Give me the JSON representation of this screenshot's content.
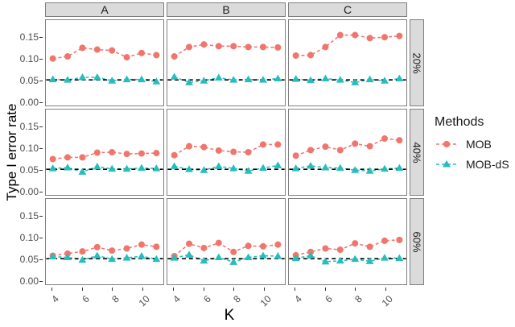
{
  "chart_data": {
    "type": "scatter",
    "subtype": "faceted-line-scatter-grid",
    "title": "",
    "xlabel": "K",
    "ylabel": "Type I error rate",
    "x": [
      4,
      5,
      6,
      7,
      8,
      9,
      10,
      11
    ],
    "x_ticks": [
      4,
      6,
      8,
      10
    ],
    "y_ticks": [
      0.15,
      0.1,
      0.05,
      0.0
    ],
    "xlim": [
      3.55,
      11.45
    ],
    "ylim": [
      -0.01,
      0.19
    ],
    "grid": false,
    "reference_line": 0.05,
    "reference_line_style": "dashed",
    "reference_line_color": "#000000",
    "col_facets": [
      "A",
      "B",
      "C"
    ],
    "row_facets": [
      "20%",
      "40%",
      "60%"
    ],
    "legend": {
      "title": "Methods",
      "position": "right",
      "entries": [
        {
          "label": "MOB",
          "marker": "circle",
          "color": "#F0766D"
        },
        {
          "label": "MOB-dS",
          "marker": "triangle",
          "color": "#27BDBD"
        }
      ]
    },
    "panels": [
      {
        "row_facet": "20%",
        "col_facet": "A",
        "series": [
          {
            "name": "MOB",
            "y": [
              0.1,
              0.105,
              0.125,
              0.121,
              0.119,
              0.103,
              0.113,
              0.108
            ]
          },
          {
            "name": "MOB-dS",
            "y": [
              0.051,
              0.05,
              0.056,
              0.056,
              0.048,
              0.051,
              0.051,
              0.046
            ]
          }
        ]
      },
      {
        "row_facet": "20%",
        "col_facet": "B",
        "series": [
          {
            "name": "MOB",
            "y": [
              0.105,
              0.127,
              0.133,
              0.129,
              0.129,
              0.127,
              0.127,
              0.126
            ]
          },
          {
            "name": "MOB-dS",
            "y": [
              0.057,
              0.044,
              0.048,
              0.055,
              0.05,
              0.051,
              0.05,
              0.053
            ]
          }
        ]
      },
      {
        "row_facet": "20%",
        "col_facet": "C",
        "series": [
          {
            "name": "MOB",
            "y": [
              0.107,
              0.108,
              0.127,
              0.155,
              0.155,
              0.148,
              0.15,
              0.153
            ]
          },
          {
            "name": "MOB-dS",
            "y": [
              0.052,
              0.049,
              0.053,
              0.05,
              0.044,
              0.051,
              0.048,
              0.053
            ]
          }
        ]
      },
      {
        "row_facet": "40%",
        "col_facet": "A",
        "series": [
          {
            "name": "MOB",
            "y": [
              0.074,
              0.078,
              0.078,
              0.089,
              0.09,
              0.086,
              0.087,
              0.088
            ]
          },
          {
            "name": "MOB-dS",
            "y": [
              0.052,
              0.054,
              0.044,
              0.056,
              0.051,
              0.051,
              0.053,
              0.052
            ]
          }
        ]
      },
      {
        "row_facet": "40%",
        "col_facet": "B",
        "series": [
          {
            "name": "MOB",
            "y": [
              0.083,
              0.104,
              0.102,
              0.094,
              0.091,
              0.09,
              0.108,
              0.108
            ]
          },
          {
            "name": "MOB-dS",
            "y": [
              0.057,
              0.05,
              0.048,
              0.057,
              0.052,
              0.046,
              0.053,
              0.059
            ]
          }
        ]
      },
      {
        "row_facet": "40%",
        "col_facet": "C",
        "series": [
          {
            "name": "MOB",
            "y": [
              0.082,
              0.095,
              0.103,
              0.095,
              0.11,
              0.104,
              0.122,
              0.118
            ]
          },
          {
            "name": "MOB-dS",
            "y": [
              0.052,
              0.058,
              0.054,
              0.053,
              0.048,
              0.046,
              0.051,
              0.053
            ]
          }
        ]
      },
      {
        "row_facet": "60%",
        "col_facet": "A",
        "series": [
          {
            "name": "MOB",
            "y": [
              0.057,
              0.062,
              0.067,
              0.077,
              0.069,
              0.074,
              0.083,
              0.078
            ]
          },
          {
            "name": "MOB-dS",
            "y": [
              0.055,
              0.053,
              0.047,
              0.057,
              0.049,
              0.052,
              0.056,
              0.049
            ]
          }
        ]
      },
      {
        "row_facet": "60%",
        "col_facet": "B",
        "series": [
          {
            "name": "MOB",
            "y": [
              0.056,
              0.085,
              0.075,
              0.087,
              0.066,
              0.08,
              0.079,
              0.083
            ]
          },
          {
            "name": "MOB-dS",
            "y": [
              0.052,
              0.059,
              0.045,
              0.053,
              0.042,
              0.053,
              0.057,
              0.056
            ]
          }
        ]
      },
      {
        "row_facet": "60%",
        "col_facet": "C",
        "series": [
          {
            "name": "MOB",
            "y": [
              0.058,
              0.066,
              0.074,
              0.071,
              0.086,
              0.078,
              0.092,
              0.094
            ]
          },
          {
            "name": "MOB-dS",
            "y": [
              0.051,
              0.057,
              0.043,
              0.045,
              0.049,
              0.044,
              0.052,
              0.051
            ]
          }
        ]
      }
    ],
    "colors": {
      "mob": "#F0766D",
      "mob_ds": "#27BDBD",
      "panel_border": "#7f7f7f",
      "strip_fill": "#dbdbdb",
      "tick_text": "#4d4d4d"
    }
  }
}
